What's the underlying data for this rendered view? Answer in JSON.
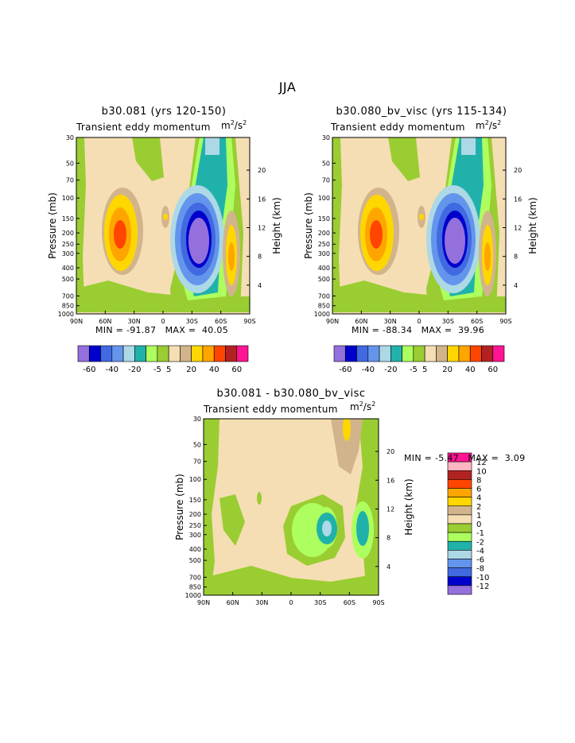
{
  "figure": {
    "main_title": "JJA"
  },
  "colors": {
    "fill_levels": [
      "#9370DB",
      "#0000CD",
      "#4169E1",
      "#6495ED",
      "#ADD8E6",
      "#20B2AA",
      "#ADFF5F",
      "#9ACD32",
      "#F5DEB3",
      "#D2B48C",
      "#FFD700",
      "#FFA500",
      "#FF4500",
      "#B22222",
      "#FF1493"
    ],
    "diff_levels": [
      "#9370DB",
      "#0000CD",
      "#4169E1",
      "#6495ED",
      "#ADD8E6",
      "#20B2AA",
      "#ADFF5F",
      "#9ACD32",
      "#F5DEB3",
      "#D2B48C",
      "#FFD700",
      "#FFA500",
      "#FF4500",
      "#B22222",
      "#FFB6C1",
      "#FF1493"
    ]
  },
  "chart_data": [
    {
      "type": "contour",
      "title": "b30.081 (yrs 120-150)",
      "subtitle": "Transient eddy momentum",
      "units_base": "m",
      "units_exp1": "2",
      "units_mid": "/s",
      "units_exp2": "2",
      "xlabel": "",
      "ylabel": "Pressure (mb)",
      "ylabel_right": "Height (km)",
      "x_ticks": [
        "90N",
        "60N",
        "30N",
        "0",
        "30S",
        "60S",
        "90S"
      ],
      "y_ticks": [
        "30",
        "50",
        "70",
        "100",
        "150",
        "200",
        "250",
        "300",
        "400",
        "500",
        "700",
        "850",
        "1000"
      ],
      "height_ticks": [
        "20",
        "16",
        "12",
        "8",
        "4"
      ],
      "min_label": "MIN =",
      "min_value": "-91.87",
      "max_label": "MAX =",
      "max_value": "40.05",
      "colorbar_labels": [
        "-60",
        "-40",
        "-20",
        "-5",
        "5",
        "20",
        "40",
        "60"
      ],
      "centers": [
        {
          "feature": "positive maximum",
          "lat": "45N",
          "p": 230
        },
        {
          "feature": "negative minimum",
          "lat": "33S",
          "p": 270
        },
        {
          "feature": "positive secondary",
          "lat": "65S",
          "p": 300
        }
      ]
    },
    {
      "type": "contour",
      "title": "b30.080_bv_visc (yrs 115-134)",
      "subtitle": "Transient eddy momentum",
      "units_base": "m",
      "units_exp1": "2",
      "units_mid": "/s",
      "units_exp2": "2",
      "xlabel": "",
      "ylabel": "Pressure (mb)",
      "ylabel_right": "Height (km)",
      "x_ticks": [
        "90N",
        "60N",
        "30N",
        "0",
        "30S",
        "60S",
        "90S"
      ],
      "y_ticks": [
        "30",
        "50",
        "70",
        "100",
        "150",
        "200",
        "250",
        "300",
        "400",
        "500",
        "700",
        "850",
        "1000"
      ],
      "height_ticks": [
        "20",
        "16",
        "12",
        "8",
        "4"
      ],
      "min_label": "MIN =",
      "min_value": "-88.34",
      "max_label": "MAX =",
      "max_value": "39.96",
      "colorbar_labels": [
        "-60",
        "-40",
        "-20",
        "-5",
        "5",
        "20",
        "40",
        "60"
      ],
      "centers": [
        {
          "feature": "positive maximum",
          "lat": "45N",
          "p": 230
        },
        {
          "feature": "negative minimum",
          "lat": "33S",
          "p": 270
        },
        {
          "feature": "positive secondary",
          "lat": "65S",
          "p": 300
        }
      ]
    },
    {
      "type": "contour",
      "title": "b30.081 - b30.080_bv_visc",
      "subtitle": "Transient eddy momentum",
      "units_base": "m",
      "units_exp1": "2",
      "units_mid": "/s",
      "units_exp2": "2",
      "xlabel": "",
      "ylabel": "Pressure (mb)",
      "ylabel_right": "Height (km)",
      "x_ticks": [
        "90N",
        "60N",
        "30N",
        "0",
        "30S",
        "60S",
        "90S"
      ],
      "y_ticks": [
        "30",
        "50",
        "70",
        "100",
        "150",
        "200",
        "250",
        "300",
        "400",
        "500",
        "700",
        "850",
        "1000"
      ],
      "height_ticks": [
        "20",
        "16",
        "12",
        "8",
        "4"
      ],
      "min_label": "MIN =",
      "min_value": "-5.47",
      "max_label": "MAX =",
      "max_value": "3.09",
      "colorbar_labels": [
        "12",
        "10",
        "8",
        "6",
        "4",
        "2",
        "1",
        "0",
        "-1",
        "-2",
        "-4",
        "-6",
        "-8",
        "-10",
        "-12"
      ]
    }
  ]
}
